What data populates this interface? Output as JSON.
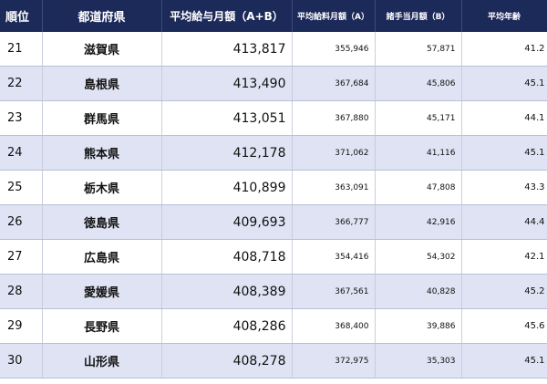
{
  "table": {
    "headers": {
      "rank": "順位",
      "prefecture": "都道府県",
      "total": "平均給与月額（A+B）",
      "base": "平均給料月額（A）",
      "allowance": "諸手当月額（B）",
      "age": "平均年齢"
    },
    "rows": [
      {
        "rank": "21",
        "prefecture": "滋賀県",
        "total": "413,817",
        "base": "355,946",
        "allowance": "57,871",
        "age": "41.2"
      },
      {
        "rank": "22",
        "prefecture": "島根県",
        "total": "413,490",
        "base": "367,684",
        "allowance": "45,806",
        "age": "45.1"
      },
      {
        "rank": "23",
        "prefecture": "群馬県",
        "total": "413,051",
        "base": "367,880",
        "allowance": "45,171",
        "age": "44.1"
      },
      {
        "rank": "24",
        "prefecture": "熊本県",
        "total": "412,178",
        "base": "371,062",
        "allowance": "41,116",
        "age": "45.1"
      },
      {
        "rank": "25",
        "prefecture": "栃木県",
        "total": "410,899",
        "base": "363,091",
        "allowance": "47,808",
        "age": "43.3"
      },
      {
        "rank": "26",
        "prefecture": "徳島県",
        "total": "409,693",
        "base": "366,777",
        "allowance": "42,916",
        "age": "44.4"
      },
      {
        "rank": "27",
        "prefecture": "広島県",
        "total": "408,718",
        "base": "354,416",
        "allowance": "54,302",
        "age": "42.1"
      },
      {
        "rank": "28",
        "prefecture": "愛媛県",
        "total": "408,389",
        "base": "367,561",
        "allowance": "40,828",
        "age": "45.2"
      },
      {
        "rank": "29",
        "prefecture": "長野県",
        "total": "408,286",
        "base": "368,400",
        "allowance": "39,886",
        "age": "45.6"
      },
      {
        "rank": "30",
        "prefecture": "山形県",
        "total": "408,278",
        "base": "372,975",
        "allowance": "35,303",
        "age": "45.1"
      }
    ]
  }
}
